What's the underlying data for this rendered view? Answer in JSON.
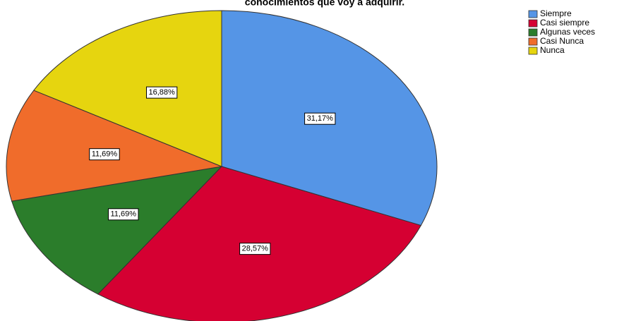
{
  "chart_data": {
    "type": "pie",
    "title": "conocimientos que voy a adquirir.",
    "categories": [
      "Siempre",
      "Casi siempre",
      "Algunas veces",
      "Casi Nunca",
      "Nunca"
    ],
    "values": [
      31.17,
      28.57,
      11.69,
      11.69,
      16.88
    ],
    "value_labels": [
      "31,17%",
      "28,57%",
      "11,69%",
      "11,69%",
      "16,88%"
    ],
    "colors": [
      "#5595e6",
      "#d50032",
      "#2b7d2b",
      "#f06c2b",
      "#e6d50f"
    ],
    "legend": "top-right"
  }
}
